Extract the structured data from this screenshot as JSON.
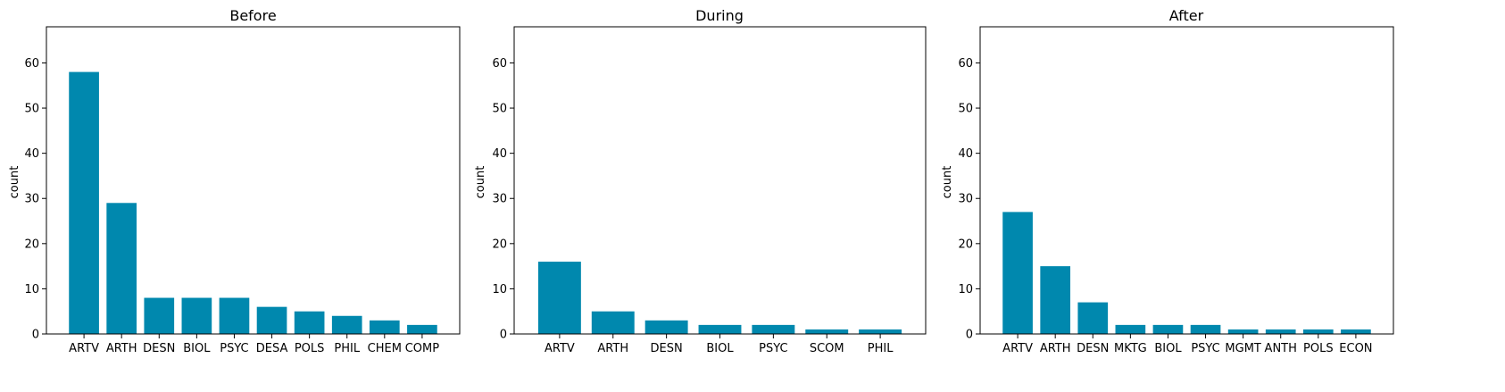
{
  "figure": {
    "bar_color": "#0088ae",
    "ylim": [
      0,
      68
    ],
    "yticks": [
      0,
      10,
      20,
      30,
      40,
      50,
      60
    ]
  },
  "chart_data": [
    {
      "type": "bar",
      "title": "Before",
      "xlabel": "",
      "ylabel": "count",
      "ylim": [
        0,
        68
      ],
      "categories": [
        "ARTV",
        "ARTH",
        "DESN",
        "BIOL",
        "PSYC",
        "DESA",
        "POLS",
        "PHIL",
        "CHEM",
        "COMP"
      ],
      "values": [
        58,
        29,
        8,
        8,
        8,
        6,
        5,
        4,
        3,
        2
      ]
    },
    {
      "type": "bar",
      "title": "During",
      "xlabel": "",
      "ylabel": "count",
      "ylim": [
        0,
        68
      ],
      "categories": [
        "ARTV",
        "ARTH",
        "DESN",
        "BIOL",
        "PSYC",
        "SCOM",
        "PHIL"
      ],
      "values": [
        16,
        5,
        3,
        2,
        2,
        1,
        1
      ]
    },
    {
      "type": "bar",
      "title": "After",
      "xlabel": "",
      "ylabel": "count",
      "ylim": [
        0,
        68
      ],
      "categories": [
        "ARTV",
        "ARTH",
        "DESN",
        "MKTG",
        "BIOL",
        "PSYC",
        "MGMT",
        "ANTH",
        "POLS",
        "ECON"
      ],
      "values": [
        27,
        15,
        7,
        2,
        2,
        2,
        1,
        1,
        1,
        1
      ]
    }
  ]
}
